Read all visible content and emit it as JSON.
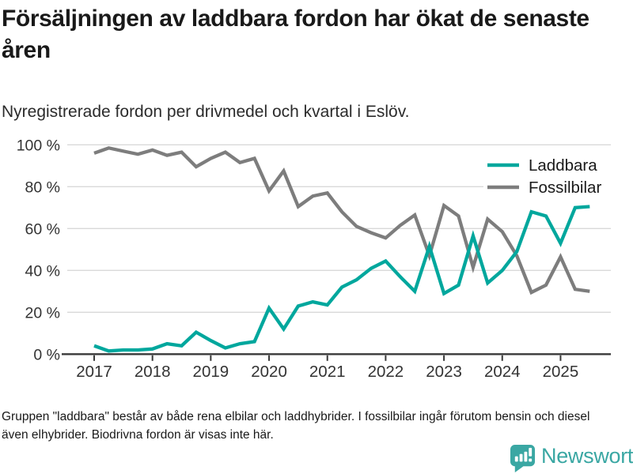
{
  "header": {
    "title": "Försäljningen av laddbara fordon har ökat de senaste åren",
    "subtitle": "Nyregistrerade fordon per drivmedel och kvartal i Eslöv."
  },
  "footer": {
    "note": "Gruppen \"laddbara\" består av både rena elbilar och laddhybrider. I fossilbilar ingår förutom bensin och diesel även elhybrider. Biodrivna fordon är visas inte här.",
    "brand": "Newsworthy",
    "brand_color": "#3aa7a3",
    "brand_icon": "bar-chart-speech-bubble"
  },
  "chart_data": {
    "type": "line",
    "title": "Försäljningen av laddbara fordon har ökat de senaste åren",
    "subtitle": "Nyregistrerade fordon per drivmedel och kvartal i Eslöv.",
    "unit": "%",
    "ylim": [
      0,
      100
    ],
    "grid": "horizontal",
    "legend_position": "top-right",
    "x_tick_labels": [
      "2017",
      "2018",
      "2019",
      "2020",
      "2021",
      "2022",
      "2023",
      "2024",
      "2025"
    ],
    "y_ticks": [
      0,
      20,
      40,
      60,
      80,
      100
    ],
    "y_tick_labels": [
      "0 %",
      "20 %",
      "40 %",
      "60 %",
      "80 %",
      "100 %"
    ],
    "x": [
      "2017 Q1",
      "2017 Q2",
      "2017 Q3",
      "2017 Q4",
      "2018 Q1",
      "2018 Q2",
      "2018 Q3",
      "2018 Q4",
      "2019 Q1",
      "2019 Q2",
      "2019 Q3",
      "2019 Q4",
      "2020 Q1",
      "2020 Q2",
      "2020 Q3",
      "2020 Q4",
      "2021 Q1",
      "2021 Q2",
      "2021 Q3",
      "2021 Q4",
      "2022 Q1",
      "2022 Q2",
      "2022 Q3",
      "2022 Q4",
      "2023 Q1",
      "2023 Q2",
      "2023 Q3",
      "2023 Q4",
      "2024 Q1",
      "2024 Q2",
      "2024 Q3",
      "2024 Q4",
      "2025 Q1",
      "2025 Q2",
      "2025 Q3"
    ],
    "series": [
      {
        "name": "Laddbara",
        "color": "#00a79d",
        "values": [
          4,
          1.5,
          2,
          2,
          2.5,
          5,
          4,
          10.5,
          6.5,
          3,
          5,
          6,
          22,
          12,
          23,
          25,
          23.5,
          32,
          35.5,
          41,
          44.5,
          37,
          30,
          51.5,
          29,
          33,
          56.5,
          34,
          40,
          49,
          68,
          66,
          53,
          70,
          70.5
        ]
      },
      {
        "name": "Fossilbilar",
        "color": "#7d7d7d",
        "values": [
          96,
          98.5,
          97,
          95.5,
          97.5,
          95,
          96.5,
          89.5,
          93.5,
          96.5,
          91.5,
          93.5,
          78,
          87.5,
          70.5,
          75.5,
          77,
          68,
          61,
          58,
          55.5,
          61.5,
          66.5,
          47,
          71,
          66,
          41.5,
          64.5,
          58.5,
          47,
          29.5,
          33,
          46.5,
          31,
          30
        ]
      }
    ]
  }
}
